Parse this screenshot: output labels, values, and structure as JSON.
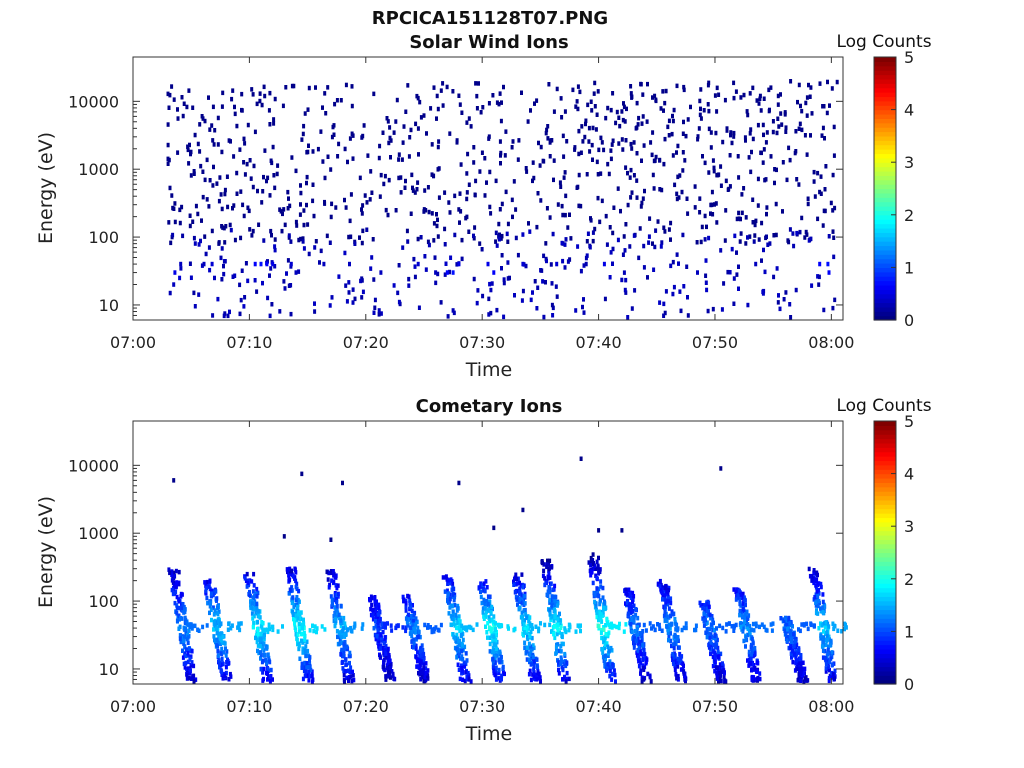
{
  "figure": {
    "title": "RPCICA151128T07.PNG"
  },
  "colorbar": {
    "title": "Log Counts",
    "ticks": [
      "0",
      "1",
      "2",
      "3",
      "4",
      "5"
    ],
    "range": [
      0,
      5
    ]
  },
  "axes_common": {
    "xlabel": "Time",
    "ylabel": "Energy (eV)",
    "x_ticks": [
      "07:00",
      "07:10",
      "07:20",
      "07:30",
      "07:40",
      "07:50",
      "08:00"
    ],
    "y_ticks": [
      "10",
      "100",
      "1000",
      "10000"
    ],
    "xlim_minutes": [
      0,
      61
    ],
    "ylim_eV": [
      6,
      45000
    ],
    "y_scale": "log",
    "colormap": "jet"
  },
  "chart_data": [
    {
      "type": "heatmap",
      "title": "Solar Wind Ions",
      "x_axis": "Time (minutes after 07:00)",
      "y_axis": "Energy (eV)",
      "z_units": "Log Counts",
      "cells": [
        {
          "t": 3.5,
          "e": 20,
          "z": 0.3
        },
        {
          "t": 3.6,
          "e": 30,
          "z": 0.5
        },
        {
          "t": 4.0,
          "e": 25,
          "z": 0.4
        },
        {
          "t": 4.1,
          "e": 40,
          "z": 0.3
        },
        {
          "t": 6.1,
          "e": 40,
          "z": 0.3
        },
        {
          "t": 6.8,
          "e": 40,
          "z": 0.4
        },
        {
          "t": 7.0,
          "e": 25,
          "z": 0.3
        },
        {
          "t": 10.5,
          "e": 40,
          "z": 0.6
        },
        {
          "t": 11.0,
          "e": 40,
          "z": 0.7
        },
        {
          "t": 11.5,
          "e": 40,
          "z": 0.6
        },
        {
          "t": 12.0,
          "e": 40,
          "z": 0.5
        },
        {
          "t": 13.6,
          "e": 40,
          "z": 0.4
        },
        {
          "t": 14.0,
          "e": 30,
          "z": 0.3
        },
        {
          "t": 15.6,
          "e": 8,
          "z": 0.2
        },
        {
          "t": 16.4,
          "e": 40,
          "z": 0.3
        },
        {
          "t": 18.6,
          "e": 40,
          "z": 0.3
        },
        {
          "t": 21.3,
          "e": 30,
          "z": 0.3
        },
        {
          "t": 24.5,
          "e": 40,
          "z": 0.4
        },
        {
          "t": 26.0,
          "e": 30,
          "z": 0.3
        },
        {
          "t": 27.0,
          "e": 30,
          "z": 0.6
        },
        {
          "t": 27.5,
          "e": 30,
          "z": 0.7
        },
        {
          "t": 28.0,
          "e": 40,
          "z": 0.5
        },
        {
          "t": 30.5,
          "e": 40,
          "z": 0.5
        },
        {
          "t": 31.0,
          "e": 30,
          "z": 0.6
        },
        {
          "t": 33.5,
          "e": 40,
          "z": 0.4
        },
        {
          "t": 36.4,
          "e": 40,
          "z": 0.4
        },
        {
          "t": 40.5,
          "e": 40,
          "z": 0.5
        },
        {
          "t": 48.5,
          "e": 30,
          "z": 0.3
        },
        {
          "t": 53.5,
          "e": 40,
          "z": 0.3
        },
        {
          "t": 59.0,
          "e": 40,
          "z": 0.6
        },
        {
          "t": 59.7,
          "e": 40,
          "z": 0.7
        },
        {
          "t": 59.8,
          "e": 30,
          "z": 0.6
        }
      ],
      "scatter_counts_note_free": true
    },
    {
      "type": "heatmap",
      "title": "Cometary Ions",
      "x_axis": "Time (minutes after 07:00)",
      "y_axis": "Energy (eV)",
      "z_units": "Log Counts",
      "bursts": [
        {
          "t": 3.5,
          "e_top": 300,
          "peak": 1.3
        },
        {
          "t": 6.5,
          "e_top": 200,
          "peak": 1.6
        },
        {
          "t": 10.0,
          "e_top": 250,
          "peak": 1.8
        },
        {
          "t": 13.5,
          "e_top": 300,
          "peak": 1.9
        },
        {
          "t": 17.0,
          "e_top": 280,
          "peak": 1.5
        },
        {
          "t": 20.5,
          "e_top": 120,
          "peak": 0.9
        },
        {
          "t": 23.5,
          "e_top": 120,
          "peak": 1.2
        },
        {
          "t": 27.0,
          "e_top": 250,
          "peak": 1.7
        },
        {
          "t": 30.0,
          "e_top": 200,
          "peak": 1.9
        },
        {
          "t": 33.0,
          "e_top": 250,
          "peak": 1.7
        },
        {
          "t": 35.5,
          "e_top": 400,
          "peak": 1.8
        },
        {
          "t": 39.5,
          "e_top": 500,
          "peak": 2.0
        },
        {
          "t": 42.5,
          "e_top": 150,
          "peak": 1.2
        },
        {
          "t": 45.5,
          "e_top": 200,
          "peak": 1.3
        },
        {
          "t": 49.0,
          "e_top": 100,
          "peak": 1.2
        },
        {
          "t": 52.0,
          "e_top": 150,
          "peak": 1.3
        },
        {
          "t": 56.0,
          "e_top": 60,
          "peak": 1.2
        },
        {
          "t": 58.5,
          "e_top": 300,
          "peak": 1.6
        }
      ],
      "sparse_points": [
        {
          "t": 3.5,
          "e": 6000
        },
        {
          "t": 14.5,
          "e": 7500
        },
        {
          "t": 18.0,
          "e": 5500
        },
        {
          "t": 28.0,
          "e": 5500
        },
        {
          "t": 38.5,
          "e": 12500
        },
        {
          "t": 50.5,
          "e": 9000
        },
        {
          "t": 13.0,
          "e": 900
        },
        {
          "t": 17.0,
          "e": 800
        },
        {
          "t": 31.0,
          "e": 1200
        },
        {
          "t": 33.5,
          "e": 2200
        },
        {
          "t": 40.0,
          "e": 1100
        },
        {
          "t": 42.0,
          "e": 1100
        }
      ]
    }
  ]
}
